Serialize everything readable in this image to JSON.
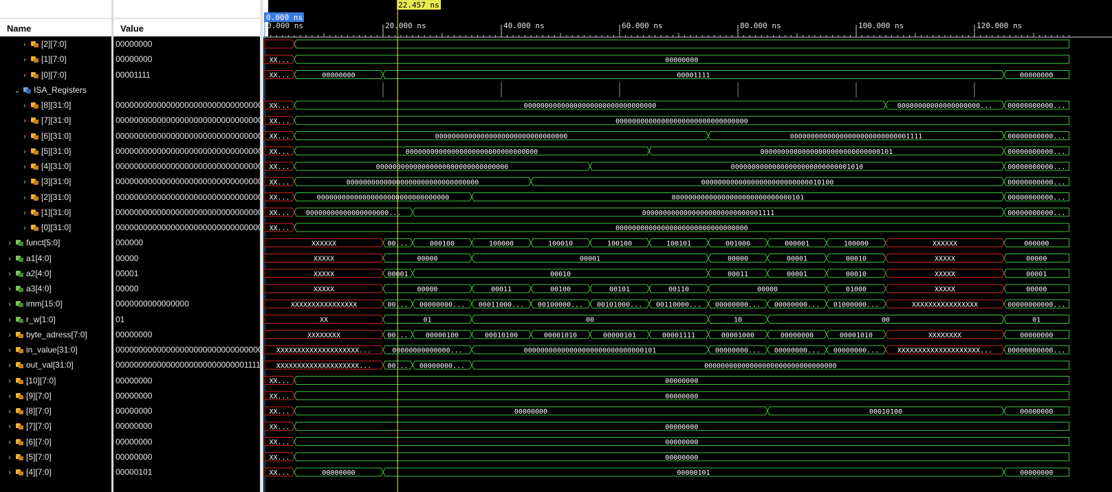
{
  "columns": {
    "name": "Name",
    "value": "Value"
  },
  "cursor": {
    "time_ns": 22.457,
    "label": "22.457 ns"
  },
  "timeline": {
    "origin_label": "0.000 ns",
    "ticks": [
      {
        "t": 0,
        "label": "0.000 ns"
      },
      {
        "t": 20,
        "label": "20.000 ns"
      },
      {
        "t": 40,
        "label": "40.000 ns"
      },
      {
        "t": 60,
        "label": "60.000 ns"
      },
      {
        "t": 80,
        "label": "80.000 ns"
      },
      {
        "t": 100,
        "label": "100.000 ns"
      },
      {
        "t": 120,
        "label": "120.000 ns"
      }
    ]
  },
  "icons": {
    "chevron_right": "›",
    "chevron_down": "⌄"
  },
  "signals": [
    {
      "name": "[2][7:0]",
      "value": "00000000",
      "icon": "orange",
      "indent": 2,
      "chev": "right",
      "segs": [
        [
          0,
          5,
          "",
          1
        ],
        [
          5,
          136,
          ""
        ]
      ]
    },
    {
      "name": "[1][7:0]",
      "value": "00000000",
      "icon": "orange",
      "indent": 2,
      "chev": "right",
      "segs": [
        [
          0,
          5,
          "XX...",
          1
        ],
        [
          5,
          136,
          "00000000"
        ]
      ]
    },
    {
      "name": "[0][7:0]",
      "value": "00001111",
      "icon": "orange",
      "indent": 2,
      "chev": "right",
      "segs": [
        [
          0,
          5,
          "XX...",
          1
        ],
        [
          5,
          20,
          "00000000"
        ],
        [
          20,
          125,
          "00001111"
        ],
        [
          125,
          136,
          "00000000"
        ]
      ]
    },
    {
      "name": "ISA_Registers",
      "value": "",
      "icon": "blue",
      "indent": 1,
      "chev": "down",
      "group": true
    },
    {
      "name": "[8][31:0]",
      "value": "00000000000000000000000000000000",
      "icon": "orange",
      "indent": 2,
      "chev": "right",
      "segs": [
        [
          0,
          5,
          "XX...",
          1
        ],
        [
          5,
          105,
          "00000000000000000000000000000000"
        ],
        [
          105,
          125,
          "00000000000000000000..."
        ],
        [
          125,
          136,
          "00000000000..."
        ]
      ]
    },
    {
      "name": "[7][31:0]",
      "value": "00000000000000000000000000000000",
      "icon": "orange",
      "indent": 2,
      "chev": "right",
      "segs": [
        [
          0,
          5,
          "XX...",
          1
        ],
        [
          5,
          136,
          "00000000000000000000000000000000"
        ]
      ]
    },
    {
      "name": "[6][31:0]",
      "value": "00000000000000000000000000000000",
      "icon": "orange",
      "indent": 2,
      "chev": "right",
      "segs": [
        [
          0,
          5,
          "XX...",
          1
        ],
        [
          5,
          75,
          "00000000000000000000000000000000"
        ],
        [
          75,
          125,
          "00000000000000000000000000001111"
        ],
        [
          125,
          136,
          "00000000000..."
        ]
      ]
    },
    {
      "name": "[5][31:0]",
      "value": "00000000000000000000000000000000",
      "icon": "orange",
      "indent": 2,
      "chev": "right",
      "segs": [
        [
          0,
          5,
          "XX...",
          1
        ],
        [
          5,
          65,
          "00000000000000000000000000000000"
        ],
        [
          65,
          125,
          "00000000000000000000000000000101"
        ],
        [
          125,
          136,
          "00000000000..."
        ]
      ]
    },
    {
      "name": "[4][31:0]",
      "value": "00000000000000000000000000000000",
      "icon": "orange",
      "indent": 2,
      "chev": "right",
      "segs": [
        [
          0,
          5,
          "XX...",
          1
        ],
        [
          5,
          55,
          "00000000000000000000000000000000"
        ],
        [
          55,
          125,
          "00000000000000000000000000001010"
        ],
        [
          125,
          136,
          "00000000000..."
        ]
      ]
    },
    {
      "name": "[3][31:0]",
      "value": "00000000000000000000000000000000",
      "icon": "orange",
      "indent": 2,
      "chev": "right",
      "segs": [
        [
          0,
          5,
          "XX...",
          1
        ],
        [
          5,
          45,
          "00000000000000000000000000000000"
        ],
        [
          45,
          125,
          "00000000000000000000000000010100"
        ],
        [
          125,
          136,
          "00000000000..."
        ]
      ]
    },
    {
      "name": "[2][31:0]",
      "value": "00000000000000000000000000000000",
      "icon": "orange",
      "indent": 2,
      "chev": "right",
      "segs": [
        [
          0,
          5,
          "XX...",
          1
        ],
        [
          5,
          35,
          "00000000000000000000000000000000"
        ],
        [
          35,
          125,
          "00000000000000000000000000000101"
        ],
        [
          125,
          136,
          "00000000000..."
        ]
      ]
    },
    {
      "name": "[1][31:0]",
      "value": "00000000000000000000000000000000",
      "icon": "orange",
      "indent": 2,
      "chev": "right",
      "segs": [
        [
          0,
          5,
          "XX...",
          1
        ],
        [
          5,
          25,
          "00000000000000000000..."
        ],
        [
          25,
          125,
          "00000000000000000000000000001111"
        ],
        [
          125,
          136,
          "00000000000..."
        ]
      ]
    },
    {
      "name": "[0][31:0]",
      "value": "00000000000000000000000000000000",
      "icon": "orange",
      "indent": 2,
      "chev": "right",
      "segs": [
        [
          0,
          5,
          "XX...",
          1
        ],
        [
          5,
          136,
          "00000000000000000000000000000000"
        ]
      ]
    },
    {
      "name": "funct[5:0]",
      "value": "000000",
      "icon": "green",
      "indent": 0,
      "chev": "right",
      "segs": [
        [
          0,
          20,
          "XXXXXX",
          1
        ],
        [
          20,
          25,
          "00..."
        ],
        [
          25,
          35,
          "000100"
        ],
        [
          35,
          45,
          "100000"
        ],
        [
          45,
          55,
          "100010"
        ],
        [
          55,
          65,
          "100100"
        ],
        [
          65,
          75,
          "100101"
        ],
        [
          75,
          85,
          "001000"
        ],
        [
          85,
          95,
          "000001"
        ],
        [
          95,
          105,
          "100000"
        ],
        [
          105,
          125,
          "XXXXXX",
          1
        ],
        [
          125,
          136,
          "000000"
        ]
      ]
    },
    {
      "name": "a1[4:0]",
      "value": "00000",
      "icon": "green",
      "indent": 0,
      "chev": "right",
      "segs": [
        [
          0,
          20,
          "XXXXX",
          1
        ],
        [
          20,
          35,
          "00000"
        ],
        [
          35,
          75,
          "00001"
        ],
        [
          75,
          85,
          "00000"
        ],
        [
          85,
          95,
          "00001"
        ],
        [
          95,
          105,
          "00010"
        ],
        [
          105,
          125,
          "XXXXX",
          1
        ],
        [
          125,
          136,
          "00000"
        ]
      ]
    },
    {
      "name": "a2[4:0]",
      "value": "00001",
      "icon": "green",
      "indent": 0,
      "chev": "right",
      "segs": [
        [
          0,
          20,
          "XXXXX",
          1
        ],
        [
          20,
          25,
          "00001"
        ],
        [
          25,
          75,
          "00010"
        ],
        [
          75,
          85,
          "00011"
        ],
        [
          85,
          95,
          "00001"
        ],
        [
          95,
          105,
          "00010"
        ],
        [
          105,
          125,
          "XXXXX",
          1
        ],
        [
          125,
          136,
          "00001"
        ]
      ]
    },
    {
      "name": "a3[4:0]",
      "value": "00000",
      "icon": "green",
      "indent": 0,
      "chev": "right",
      "segs": [
        [
          0,
          20,
          "XXXXX",
          1
        ],
        [
          20,
          35,
          "00000"
        ],
        [
          35,
          45,
          "00011"
        ],
        [
          45,
          55,
          "00100"
        ],
        [
          55,
          65,
          "00101"
        ],
        [
          65,
          75,
          "00110"
        ],
        [
          75,
          95,
          "00000"
        ],
        [
          95,
          105,
          "01000"
        ],
        [
          105,
          125,
          "XXXXX",
          1
        ],
        [
          125,
          136,
          "00000"
        ]
      ]
    },
    {
      "name": "imm[15:0]",
      "value": "0000000000000000",
      "icon": "green",
      "indent": 0,
      "chev": "right",
      "segs": [
        [
          0,
          20,
          "XXXXXXXXXXXXXXXX",
          1
        ],
        [
          20,
          25,
          "00..."
        ],
        [
          25,
          35,
          "00000000..."
        ],
        [
          35,
          45,
          "00011000..."
        ],
        [
          45,
          55,
          "00100000..."
        ],
        [
          55,
          65,
          "00101000..."
        ],
        [
          65,
          75,
          "00110000..."
        ],
        [
          75,
          85,
          "00000000..."
        ],
        [
          85,
          95,
          "00000000..."
        ],
        [
          95,
          105,
          "01000000..."
        ],
        [
          105,
          125,
          "XXXXXXXXXXXXXXXX",
          1
        ],
        [
          125,
          136,
          "00000000000..."
        ]
      ]
    },
    {
      "name": "r_w[1:0]",
      "value": "01",
      "icon": "green",
      "indent": 0,
      "chev": "right",
      "segs": [
        [
          0,
          20,
          "XX",
          1
        ],
        [
          20,
          35,
          "01"
        ],
        [
          35,
          75,
          "00"
        ],
        [
          75,
          85,
          "10"
        ],
        [
          85,
          125,
          "00"
        ],
        [
          125,
          136,
          "01"
        ]
      ]
    },
    {
      "name": "byte_adress[7:0]",
      "value": "00000000",
      "icon": "orange",
      "indent": 0,
      "chev": "right",
      "segs": [
        [
          0,
          20,
          "XXXXXXXX",
          1
        ],
        [
          20,
          25,
          "00..."
        ],
        [
          25,
          35,
          "00000100"
        ],
        [
          35,
          45,
          "00010100"
        ],
        [
          45,
          55,
          "00001010"
        ],
        [
          55,
          65,
          "00000101"
        ],
        [
          65,
          75,
          "00001111"
        ],
        [
          75,
          85,
          "00001000"
        ],
        [
          85,
          95,
          "00000000"
        ],
        [
          95,
          105,
          "00001010"
        ],
        [
          105,
          125,
          "XXXXXXXX",
          1
        ],
        [
          125,
          136,
          "00000000"
        ]
      ]
    },
    {
      "name": "in_value[31:0]",
      "value": "00000000000000000000000000000000",
      "icon": "orange",
      "indent": 0,
      "chev": "right",
      "segs": [
        [
          0,
          20,
          "XXXXXXXXXXXXXXXXXXXX...",
          1
        ],
        [
          20,
          35,
          "00000000000000..."
        ],
        [
          35,
          75,
          "00000000000000000000000000000101"
        ],
        [
          75,
          85,
          "00000000..."
        ],
        [
          85,
          95,
          "00000000..."
        ],
        [
          95,
          105,
          "00000000..."
        ],
        [
          105,
          125,
          "XXXXXXXXXXXXXXXXXXXX...",
          1
        ],
        [
          125,
          136,
          "00000000000..."
        ]
      ]
    },
    {
      "name": "out_val[31:0]",
      "value": "00000000000000000000000000001111",
      "icon": "orange",
      "indent": 0,
      "chev": "right",
      "segs": [
        [
          0,
          20,
          "XXXXXXXXXXXXXXXXXXXX...",
          1
        ],
        [
          20,
          25,
          "00..."
        ],
        [
          25,
          35,
          "00000000..."
        ],
        [
          35,
          136,
          "00000000000000000000000000000000"
        ]
      ]
    },
    {
      "name": "[10][7:0]",
      "value": "00000000",
      "icon": "orange",
      "indent": 0,
      "chev": "right",
      "segs": [
        [
          0,
          5,
          "XX...",
          1
        ],
        [
          5,
          136,
          "00000000"
        ]
      ]
    },
    {
      "name": "[9][7:0]",
      "value": "00000000",
      "icon": "orange",
      "indent": 0,
      "chev": "right",
      "segs": [
        [
          0,
          5,
          "XX...",
          1
        ],
        [
          5,
          136,
          "00000000"
        ]
      ]
    },
    {
      "name": "[8][7:0]",
      "value": "00000000",
      "icon": "orange",
      "indent": 0,
      "chev": "right",
      "segs": [
        [
          0,
          5,
          "XX...",
          1
        ],
        [
          5,
          85,
          "00000000"
        ],
        [
          85,
          125,
          "00010100"
        ],
        [
          125,
          136,
          "00000000"
        ]
      ]
    },
    {
      "name": "[7][7:0]",
      "value": "00000000",
      "icon": "orange",
      "indent": 0,
      "chev": "right",
      "segs": [
        [
          0,
          5,
          "XX...",
          1
        ],
        [
          5,
          136,
          "00000000"
        ]
      ]
    },
    {
      "name": "[6][7:0]",
      "value": "00000000",
      "icon": "orange",
      "indent": 0,
      "chev": "right",
      "segs": [
        [
          0,
          5,
          "XX...",
          1
        ],
        [
          5,
          136,
          "00000000"
        ]
      ]
    },
    {
      "name": "[5][7:0]",
      "value": "00000000",
      "icon": "orange",
      "indent": 0,
      "chev": "right",
      "segs": [
        [
          0,
          5,
          "XX...",
          1
        ],
        [
          5,
          136,
          "00000000"
        ]
      ]
    },
    {
      "name": "[4][7:0]",
      "value": "00000101",
      "icon": "orange",
      "indent": 0,
      "chev": "right",
      "segs": [
        [
          0,
          5,
          "XX...",
          1
        ],
        [
          5,
          20,
          "00000000"
        ],
        [
          20,
          125,
          "00000101"
        ],
        [
          125,
          136,
          "00000000"
        ]
      ]
    }
  ],
  "colors": {
    "wave": "#39c739",
    "undefined": "#d42424",
    "cursor": "#e8e852",
    "origin": "#3a7be0",
    "text": "#ffffff"
  }
}
